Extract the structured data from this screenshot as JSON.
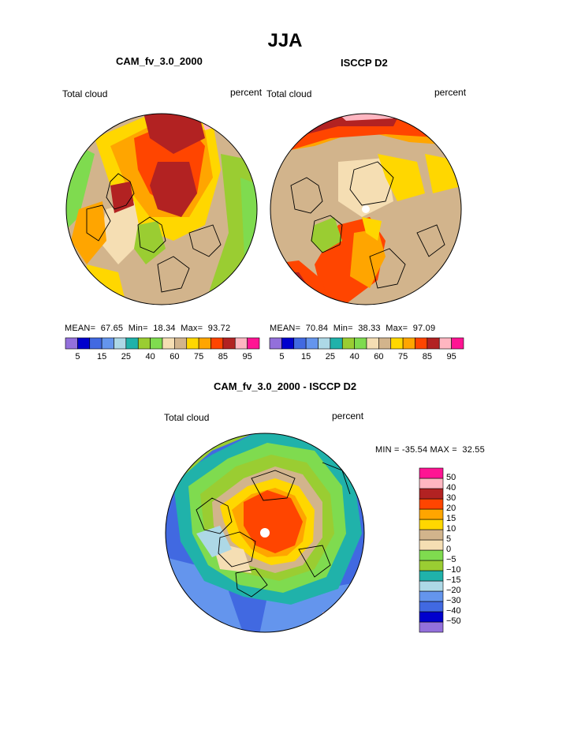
{
  "title": "JJA",
  "panels": [
    {
      "model": "CAM_fv_3.0_2000",
      "var": "Total cloud",
      "unit": "percent",
      "stats": "MEAN=  67.65  Min=  18.34  Max=  93.72"
    },
    {
      "model": "ISCCP D2",
      "var": "Total cloud",
      "unit": "percent",
      "stats": "MEAN=  70.84  Min=  38.33  Max=  97.09"
    }
  ],
  "diff_panel": {
    "model": "CAM_fv_3.0_2000 - ISCCP D2",
    "var": "Total cloud",
    "unit": "percent",
    "stats": "MIN = -35.54 MAX =  32.55"
  },
  "colorbar_abs": {
    "colors": [
      "#9370DB",
      "#0000CD",
      "#4169E1",
      "#6495ED",
      "#ADD8E6",
      "#20B2AA",
      "#9ACD32",
      "#7FDB4F",
      "#F5DEB3",
      "#D2B48C",
      "#FFD700",
      "#FFA500",
      "#FF4500",
      "#B22222",
      "#FFB6C1",
      "#FF1493"
    ],
    "tick_labels": [
      "5",
      "15",
      "25",
      "40",
      "60",
      "75",
      "85",
      "95"
    ]
  },
  "colorbar_diff": {
    "colors": [
      "#9370DB",
      "#0000CD",
      "#4169E1",
      "#6495ED",
      "#ADD8E6",
      "#20B2AA",
      "#9ACD32",
      "#7FDB4F",
      "#F5DEB3",
      "#D2B48C",
      "#FFD700",
      "#FFA500",
      "#FF4500",
      "#B22222",
      "#FFB6C1",
      "#FF1493"
    ],
    "tick_labels": [
      "-50",
      "-40",
      "-30",
      "-20",
      "-15",
      "-10",
      "-5",
      "0",
      "5",
      "10",
      "15",
      "20",
      "30",
      "40",
      "50"
    ]
  }
}
